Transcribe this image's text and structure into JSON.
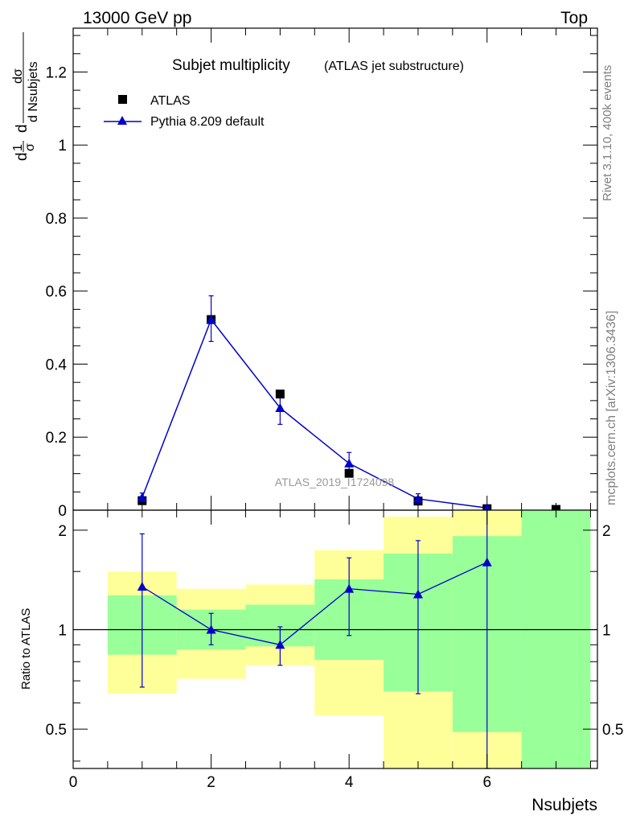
{
  "header": {
    "left": "13000 GeV pp",
    "right": "Top"
  },
  "side_labels": {
    "rivet": "Rivet 3.1.10,  400k events",
    "mcplots": "mcplots.cern.ch [arXiv:1306.3436]"
  },
  "chart_data": [
    {
      "type": "scatter",
      "title": "Subjet multiplicity",
      "subtitle": "(ATLAS jet substructure)",
      "xlabel": "Nsubjets",
      "ylabel": "d",
      "ylabel_parts": {
        "d1": "d",
        "one": "1",
        "sigma": "σ",
        "d2": "d",
        "dsigma": "dσ",
        "dN": "d Nsubjets"
      },
      "watermark": "ATLAS_2019_I1724098",
      "xlim": [
        0,
        7.6
      ],
      "ylim": [
        0,
        1.32
      ],
      "xticks": [
        "0",
        "2",
        "4",
        "6"
      ],
      "yticks": [
        "0.2",
        "0.4",
        "0.6",
        "0.8",
        "1",
        "1.2"
      ],
      "ytick_bottom": "0",
      "legend_position": "top-left",
      "series": [
        {
          "name": "ATLAS",
          "color": "#000000",
          "marker": "square",
          "x": [
            1,
            2,
            3,
            4,
            5,
            6,
            7
          ],
          "y": [
            0.026,
            0.522,
            0.318,
            0.101,
            0.025,
            0.004,
            0.002
          ]
        },
        {
          "name": "Pythia 8.209 default",
          "color": "#0000cc",
          "marker": "triangle",
          "x": [
            1,
            2,
            3,
            4,
            5,
            6
          ],
          "y": [
            0.035,
            0.522,
            0.28,
            0.128,
            0.031,
            0.006
          ],
          "err_low": [
            0.012,
            0.06,
            0.045,
            0.03,
            0.014,
            0.006
          ],
          "err_high": [
            0.012,
            0.065,
            0.048,
            0.03,
            0.014,
            0.006
          ]
        }
      ]
    },
    {
      "type": "scatter",
      "ylabel": "Ratio to ATLAS",
      "xlabel": "Nsubjets",
      "xlim": [
        0,
        7.6
      ],
      "ylim": [
        0.38,
        2.3
      ],
      "log_y": true,
      "yticks": [
        "0.5",
        "1",
        "2"
      ],
      "xticks": [
        "0",
        "2",
        "4",
        "6"
      ],
      "reference_line": 1,
      "bands": {
        "bins": [
          [
            0.5,
            1.5
          ],
          [
            1.5,
            2.5
          ],
          [
            2.5,
            3.5
          ],
          [
            3.5,
            4.5
          ],
          [
            4.5,
            5.5
          ],
          [
            5.5,
            6.5
          ],
          [
            6.5,
            7.5
          ]
        ],
        "green_color": "#99ff99",
        "yellow_color": "#ffff99",
        "green": [
          [
            0.84,
            1.27
          ],
          [
            0.87,
            1.15
          ],
          [
            0.89,
            1.19
          ],
          [
            0.81,
            1.42
          ],
          [
            0.65,
            1.7
          ],
          [
            0.49,
            1.92
          ],
          [
            0.3,
            2.3
          ]
        ],
        "yellow": [
          [
            0.64,
            1.5
          ],
          [
            0.71,
            1.33
          ],
          [
            0.78,
            1.37
          ],
          [
            0.55,
            1.74
          ],
          [
            0.3,
            2.2
          ],
          [
            0.3,
            2.3
          ],
          [
            2.3,
            2.3
          ]
        ]
      },
      "series": [
        {
          "name": "Pythia 8.209 default",
          "color": "#0000cc",
          "marker": "triangle",
          "x": [
            1,
            2,
            3,
            4,
            5,
            6
          ],
          "y": [
            1.35,
            1.0,
            0.9,
            1.33,
            1.28,
            1.6
          ],
          "err_low": [
            0.68,
            0.1,
            0.12,
            0.37,
            0.64,
            1.5
          ],
          "err_high": [
            0.6,
            0.12,
            0.12,
            0.32,
            0.58,
            0.7
          ]
        }
      ]
    }
  ]
}
